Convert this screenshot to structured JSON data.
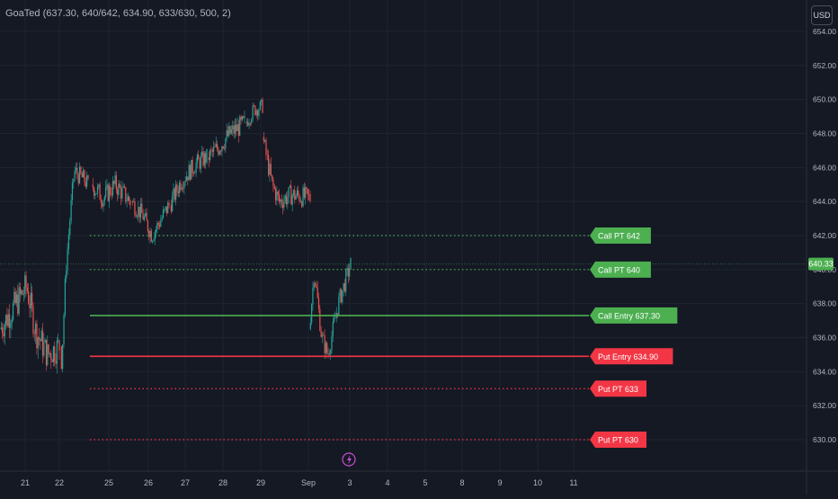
{
  "indicator": {
    "title": "GoaTed (637.30, 640/642, 634.90, 633/630, 500, 2)"
  },
  "currency_button": {
    "label": "USD"
  },
  "price_tag": {
    "label": "640.33",
    "value": 640.33,
    "color": "#4caf50"
  },
  "chart_data": {
    "type": "candlestick",
    "y_axis": {
      "ticks": [
        630,
        632,
        634,
        636,
        638,
        640,
        642,
        644,
        646,
        648,
        650,
        652,
        654
      ],
      "tick_labels": [
        "630.00",
        "632.00",
        "634.00",
        "636.00",
        "638.00",
        "640.00",
        "642.00",
        "644.00",
        "646.00",
        "648.00",
        "650.00",
        "652.00",
        "654.00"
      ],
      "range": [
        628.8,
        655.5
      ]
    },
    "x_axis": {
      "tick_labels": [
        "21",
        "22",
        "25",
        "26",
        "27",
        "28",
        "29",
        "Sep",
        "3",
        "4",
        "5",
        "8",
        "9",
        "10",
        "11"
      ]
    },
    "grid": true,
    "colors": {
      "up": "#26a69a",
      "down": "#ef5350",
      "call": "#4caf50",
      "put": "#f23645"
    },
    "segments": [
      {
        "day": "21",
        "start": 636.5,
        "path": [
          [
            0.2,
            637.6
          ],
          [
            0.45,
            639.0
          ],
          [
            0.6,
            636.4
          ],
          [
            0.8,
            635.0
          ],
          [
            1.0,
            635.5
          ]
        ],
        "noise": 0.9
      },
      {
        "day": "22",
        "start": 635.5,
        "path": [
          [
            0.05,
            634.5
          ],
          [
            0.12,
            637.0
          ],
          [
            0.2,
            640.0
          ],
          [
            0.35,
            643.0
          ],
          [
            0.5,
            645.8
          ],
          [
            0.7,
            645.5
          ],
          [
            0.85,
            645.3
          ],
          [
            1.0,
            645.0
          ]
        ],
        "noise": 0.55
      },
      {
        "day": "25",
        "start": 645.0,
        "path": [
          [
            0.3,
            644.2
          ],
          [
            0.6,
            645.0
          ],
          [
            1.0,
            644.0
          ]
        ],
        "noise": 0.6
      },
      {
        "day": "26",
        "start": 644.0,
        "path": [
          [
            0.3,
            643.2
          ],
          [
            0.55,
            642.0
          ],
          [
            0.8,
            643.0
          ],
          [
            1.0,
            643.8
          ]
        ],
        "noise": 0.55
      },
      {
        "day": "27",
        "start": 643.8,
        "path": [
          [
            0.3,
            645.2
          ],
          [
            0.7,
            646.2
          ],
          [
            1.0,
            646.6
          ]
        ],
        "noise": 0.55
      },
      {
        "day": "28",
        "start": 646.6,
        "path": [
          [
            0.3,
            647.2
          ],
          [
            0.6,
            648.0
          ],
          [
            1.0,
            648.6
          ]
        ],
        "noise": 0.6
      },
      {
        "day": "29",
        "start": 648.6,
        "path": [
          [
            0.5,
            649.4
          ],
          [
            1.0,
            649.6
          ]
        ],
        "noise": 0.45
      },
      {
        "day": "Sep-2",
        "start": 647.8,
        "path": [
          [
            0.2,
            645.0
          ],
          [
            0.35,
            644.0
          ],
          [
            0.6,
            644.4
          ],
          [
            1.0,
            644.2
          ]
        ],
        "noise": 0.6
      },
      {
        "day": "3",
        "start": 636.5,
        "path": [
          [
            0.12,
            639.9
          ],
          [
            0.3,
            636.0
          ],
          [
            0.45,
            635.0
          ],
          [
            0.7,
            638.0
          ],
          [
            1.0,
            640.3
          ]
        ],
        "noise": 0.55
      }
    ],
    "levels": [
      {
        "label": "Call PT 642",
        "value": 642.0,
        "style": "dotted",
        "side": "call"
      },
      {
        "label": "Call PT 640",
        "value": 640.0,
        "style": "dotted",
        "side": "call"
      },
      {
        "label": "Call Entry 637.30",
        "value": 637.3,
        "style": "solid",
        "side": "call"
      },
      {
        "label": "Put Entry 634.90",
        "value": 634.9,
        "style": "solid",
        "side": "put"
      },
      {
        "label": "Put PT 633",
        "value": 633.0,
        "style": "dotted",
        "side": "put"
      },
      {
        "label": "Put PT 630",
        "value": 630.0,
        "style": "dotted",
        "side": "put"
      }
    ]
  }
}
